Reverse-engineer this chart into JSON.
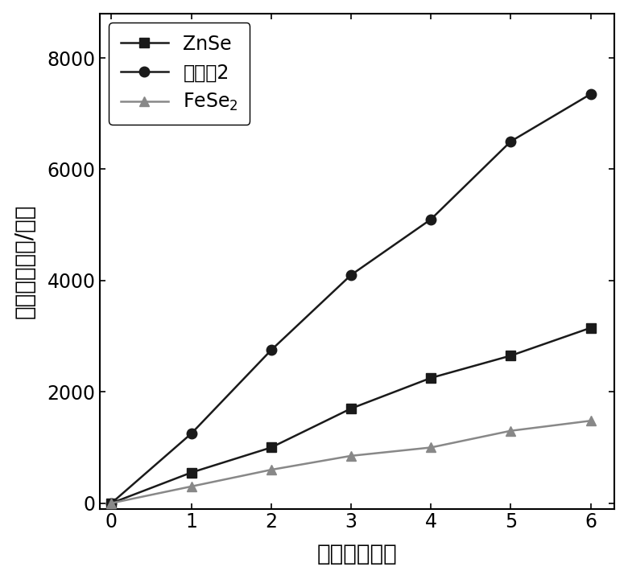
{
  "x": [
    0,
    1,
    2,
    3,
    4,
    5,
    6
  ],
  "znse_y": [
    0,
    550,
    1000,
    1700,
    2250,
    2650,
    3150
  ],
  "example2_y": [
    0,
    1250,
    2750,
    4100,
    5100,
    6500,
    7350
  ],
  "fese2_y": [
    0,
    300,
    600,
    850,
    1000,
    1300,
    1480
  ],
  "znse_color": "#1a1a1a",
  "example2_color": "#1a1a1a",
  "fese2_color": "#888888",
  "xlabel": "时间（小时）",
  "ylabel": "氢气（微摩尔/克）",
  "xlim": [
    -0.15,
    6.3
  ],
  "ylim": [
    -100,
    8800
  ],
  "yticks": [
    0,
    2000,
    4000,
    6000,
    8000
  ],
  "xticks": [
    0,
    1,
    2,
    3,
    4,
    5,
    6
  ],
  "legend_znse": "ZnSe",
  "legend_example2": "实施例2",
  "legend_fese2_prefix": "FeSe",
  "fese2_subscript": "2",
  "linewidth": 1.8,
  "marker_size": 9,
  "font_size_label": 20,
  "font_size_tick": 17,
  "font_size_legend": 17,
  "background_color": "#ffffff",
  "fig_width": 7.8,
  "fig_height": 7.2
}
